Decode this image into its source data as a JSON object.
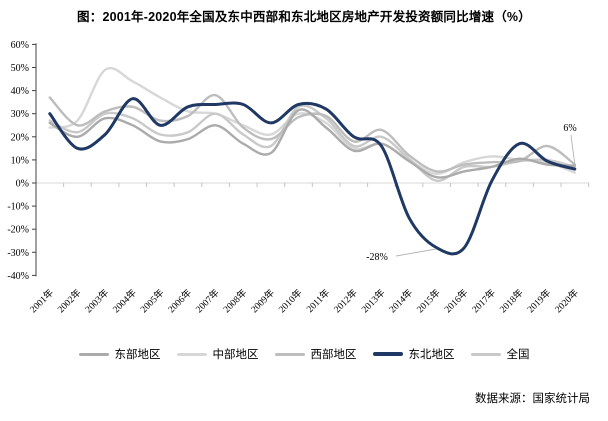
{
  "title": "图：2001年-2020年全国及东中西部和东北地区房地产开发投资额同比增速（%）",
  "source": "数据来源：国家统计局",
  "chart_data": {
    "type": "line",
    "categories": [
      "2001年",
      "2002年",
      "2003年",
      "2004年",
      "2005年",
      "2006年",
      "2007年",
      "2008年",
      "2009年",
      "2010年",
      "2011年",
      "2012年",
      "2013年",
      "2014年",
      "2015年",
      "2016年",
      "2017年",
      "2018年",
      "2019年",
      "2020年"
    ],
    "series": [
      {
        "name": "东部地区",
        "color": "#ababab",
        "width": 2.4,
        "values": [
          26,
          20,
          28,
          25,
          18,
          19,
          25,
          17,
          13,
          31.5,
          24,
          14,
          17,
          9.5,
          2.5,
          5,
          7,
          10.5,
          8,
          7.5
        ]
      },
      {
        "name": "中部地区",
        "color": "#d7d7d7",
        "width": 2.4,
        "values": [
          24,
          27,
          49,
          44,
          37,
          31,
          30,
          25,
          21,
          30,
          26,
          15,
          17,
          10,
          4,
          9,
          11.5,
          10,
          9,
          4.5
        ]
      },
      {
        "name": "西部地区",
        "color": "#bdbdbd",
        "width": 2.4,
        "values": [
          37,
          25,
          31,
          33,
          27,
          29,
          38,
          24,
          19,
          28.5,
          29,
          18,
          23,
          12,
          5,
          8,
          9,
          9.5,
          16,
          8
        ]
      },
      {
        "name": "东北地区",
        "color": "#1f3864",
        "width": 3,
        "values": [
          30,
          15,
          21,
          36.5,
          25,
          33,
          34,
          34,
          26,
          34,
          32,
          20,
          16,
          -15,
          -28,
          -28,
          1,
          17,
          9.5,
          6
        ]
      },
      {
        "name": "全国",
        "color": "#c9c9c9",
        "width": 2.4,
        "values": [
          27,
          22,
          30,
          28,
          21,
          22,
          30,
          21,
          16,
          33,
          28,
          16,
          20,
          10.5,
          1,
          7,
          7,
          9.5,
          10,
          7
        ]
      }
    ],
    "ylim": [
      -40,
      60
    ],
    "ytick_step": 10,
    "ytick_labels": [
      "60%",
      "50%",
      "40%",
      "30%",
      "20%",
      "10%",
      "0%",
      "-10%",
      "-20%",
      "-30%",
      "-40%"
    ],
    "grid": false,
    "legend_position": "bottom",
    "annotations": [
      {
        "text": "6%",
        "text_x": 570,
        "text_y": 96,
        "line": [
          571,
          100,
          575,
          131
        ]
      },
      {
        "text": "-28%",
        "text_x": 377,
        "text_y": 225,
        "line": [
          396,
          221,
          436,
          214
        ]
      }
    ],
    "draw_order": [
      1,
      4,
      2,
      0,
      3
    ]
  }
}
